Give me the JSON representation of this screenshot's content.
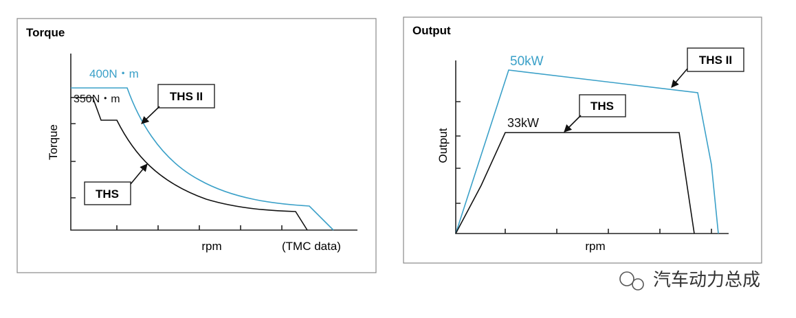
{
  "torque_panel": {
    "title": "Torque",
    "y_label": "Torque",
    "x_label": "rpm",
    "note": "(TMC data)",
    "ths2_value": "400N・m",
    "ths_value": "350N・m",
    "ths2_callout": "THS II",
    "ths_callout": "THS"
  },
  "output_panel": {
    "title": "Output",
    "y_label": "Output",
    "x_label": "rpm",
    "ths2_value": "50kW",
    "ths_value": "33kW",
    "ths2_callout": "THS II",
    "ths_callout": "THS"
  },
  "watermark": "汽车动力总成"
}
